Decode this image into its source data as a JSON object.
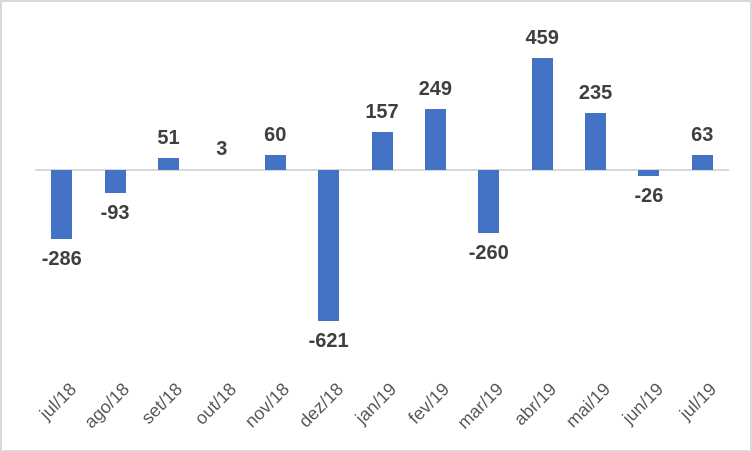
{
  "chart_data": {
    "type": "bar",
    "title": "",
    "xlabel": "",
    "ylabel": "",
    "categories": [
      "jul/18",
      "ago/18",
      "set/18",
      "out/18",
      "nov/18",
      "dez/18",
      "jan/19",
      "fev/19",
      "mar/19",
      "abr/19",
      "mai/19",
      "jun/19",
      "jul/19"
    ],
    "values": [
      -286,
      -93,
      51,
      3,
      60,
      -621,
      157,
      249,
      -260,
      459,
      235,
      -26,
      63
    ],
    "data_labels": [
      "-286",
      "-93",
      "51",
      "3",
      "60",
      "-621",
      "157",
      "249",
      "-260",
      "459",
      "235",
      "-26",
      "63"
    ],
    "ylim": [
      -700,
      500
    ],
    "grid": false,
    "legend": "none",
    "tick_label_rotation_deg": -45,
    "colors": {
      "bar": "#4472C4",
      "axis_line": "#D9D9D9",
      "data_label": "#3F3F3F",
      "tick_label": "#595959",
      "border": "#D9D9D9",
      "background": "#FFFFFF"
    }
  }
}
